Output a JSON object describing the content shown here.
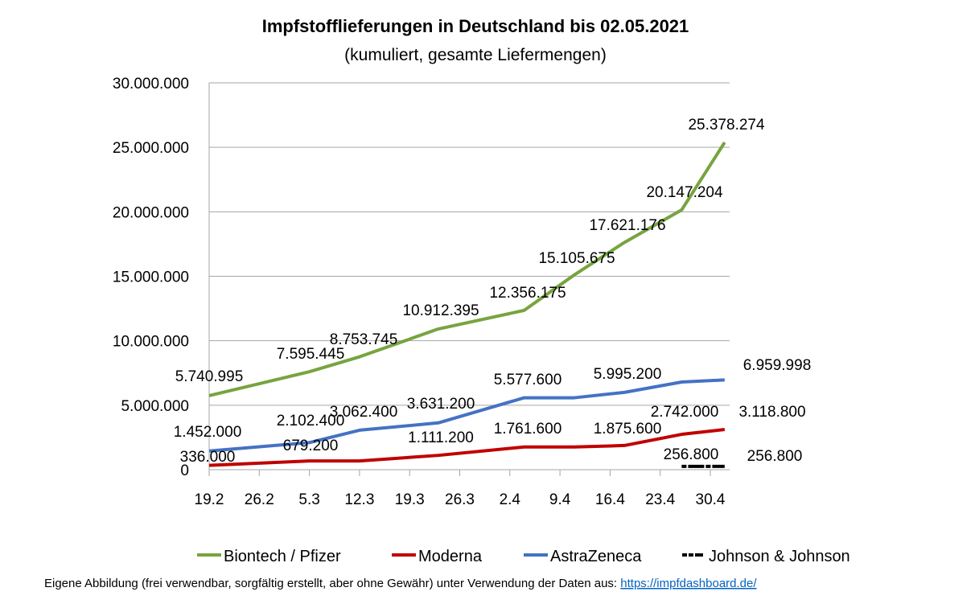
{
  "chart_data": {
    "type": "line",
    "title": "Impfstofflieferungen in Deutschland bis 02.05.2021",
    "subtitle": "(kumuliert, gesamte Liefermengen)",
    "xlabel": "",
    "ylabel": "",
    "x_ticks": [
      "19.2",
      "26.2",
      "5.3",
      "12.3",
      "19.3",
      "26.3",
      "2.4",
      "9.4",
      "16.4",
      "23.4",
      "30.4"
    ],
    "y_ticks": [
      "0",
      "5.000.000",
      "10.000.000",
      "15.000.000",
      "20.000.000",
      "25.000.000",
      "30.000.000"
    ],
    "ylim": [
      0,
      30000000
    ],
    "xlim": [
      "19.2.2021",
      "2.5.2021"
    ],
    "grid": "horizontal",
    "legend_placement": "bottom",
    "series": [
      {
        "name": "Biontech / Pfizer",
        "color": "#77a43f",
        "x": [
          "19.2",
          "5.3",
          "12.3",
          "23.3",
          "4.4",
          "11.4",
          "18.4",
          "26.4",
          "2.5"
        ],
        "values": [
          5740995,
          7595445,
          8753745,
          10912395,
          12356175,
          15105675,
          17621176,
          20147204,
          25378274
        ],
        "labels": [
          "5.740.995",
          "7.595.445",
          "8.753.745",
          "10.912.395",
          "12.356.175",
          "15.105.675",
          "17.621.176",
          "20.147.204",
          "25.378.274"
        ]
      },
      {
        "name": "Moderna",
        "color": "#c00000",
        "x": [
          "19.2",
          "5.3",
          "12.3",
          "23.3",
          "4.4",
          "11.4",
          "18.4",
          "26.4",
          "2.5"
        ],
        "values": [
          336000,
          679200,
          679200,
          1111200,
          1761600,
          1761600,
          1875600,
          2742000,
          3118800
        ],
        "labels": [
          "336.000",
          "679.200",
          null,
          "1.111.200",
          "1.761.600",
          null,
          "1.875.600",
          "2.742.000",
          "3.118.800"
        ]
      },
      {
        "name": "AstraZeneca",
        "color": "#4472c4",
        "x": [
          "19.2",
          "5.3",
          "12.3",
          "23.3",
          "4.4",
          "11.4",
          "18.4",
          "26.4",
          "2.5"
        ],
        "values": [
          1452000,
          2102400,
          3062400,
          3631200,
          5577600,
          5577600,
          5995200,
          6800000,
          6959998
        ],
        "labels": [
          "1.452.000",
          "2.102.400",
          "3.062.400",
          "3.631.200",
          "5.577.600",
          null,
          "5.995.200",
          null,
          "6.959.998"
        ]
      },
      {
        "name": "Johnson & Johnson",
        "color": "#000000",
        "x": [
          "26.4",
          "2.5"
        ],
        "values": [
          256800,
          256800
        ],
        "labels": [
          "256.800",
          "256.800"
        ]
      }
    ]
  },
  "footer": {
    "text": "Eigene Abbildung (frei verwendbar, sorgfältig erstellt, aber ohne Gewähr) unter Verwendung der Daten aus: ",
    "link": "https://impfdashboard.de/"
  }
}
